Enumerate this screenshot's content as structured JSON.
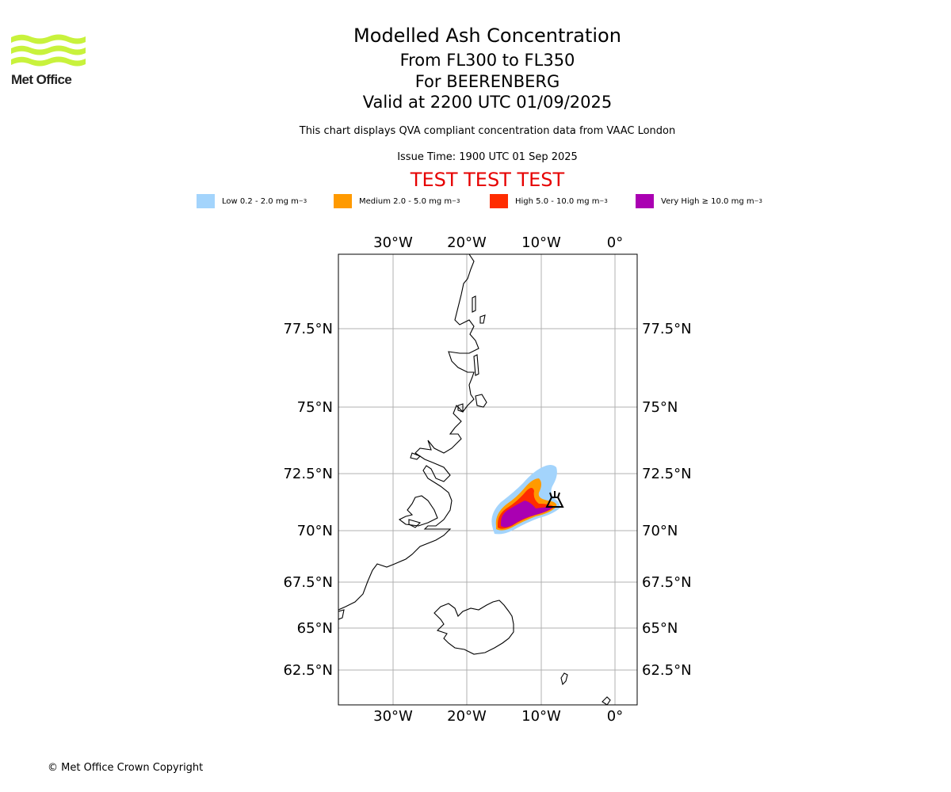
{
  "header": {
    "logo_text": "Met Office",
    "title": "Modelled Ash Concentration",
    "flight_levels": "From FL300 to FL350",
    "volcano": "For BEERENBERG",
    "valid": "Valid at 2200 UTC 01/09/2025",
    "subtitle": "This chart displays QVA compliant concentration data from VAAC London",
    "issue": "Issue Time: 1900 UTC 01 Sep 2025",
    "banner": "TEST TEST TEST"
  },
  "legend": [
    {
      "label": "Low 0.2 - 2.0 mg m",
      "sup": "−3",
      "color": "#a3d4fc"
    },
    {
      "label": "Medium 2.0 - 5.0 mg m",
      "sup": "−3",
      "color": "#ff9a00"
    },
    {
      "label": "High 5.0 - 10.0 mg m",
      "sup": "−3",
      "color": "#ff2c00"
    },
    {
      "label": "Very High ≥ 10.0 mg m",
      "sup": "−3",
      "color": "#aa00b2"
    }
  ],
  "map": {
    "lon_labels": [
      "30°W",
      "20°W",
      "10°W",
      "0°"
    ],
    "lat_labels": [
      "77.5°N",
      "75°N",
      "72.5°N",
      "70°N",
      "67.5°N",
      "65°N",
      "62.5°N"
    ],
    "grid_color": "#b0b0b0",
    "coast_color": "#000000",
    "volcano_icon": "volcano-icon"
  },
  "footer": {
    "copyright": "© Met Office Crown Copyright"
  }
}
